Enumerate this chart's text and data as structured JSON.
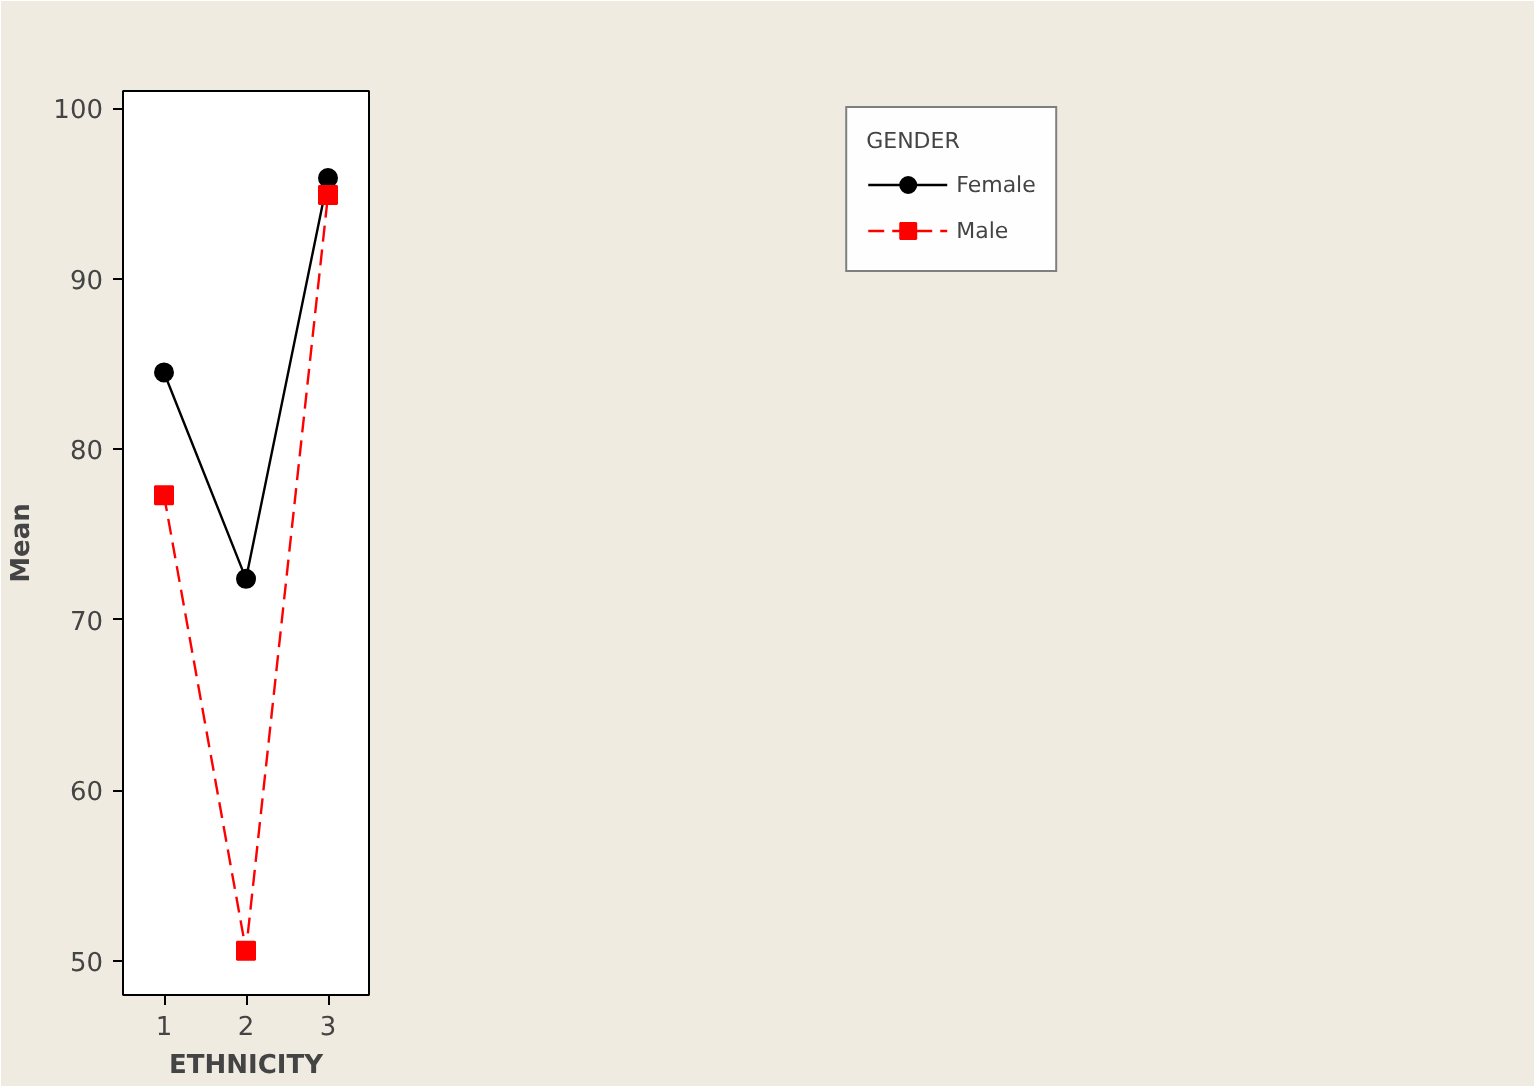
{
  "chart_data": {
    "type": "line",
    "xlabel": "ETHNICITY",
    "ylabel": "Mean",
    "legend_title": "GENDER",
    "legend": "top right",
    "categories": [
      "1",
      "2",
      "3"
    ],
    "ylim": [
      48,
      101
    ],
    "yticks": [
      50,
      60,
      70,
      80,
      90,
      100
    ],
    "grid": false,
    "series": [
      {
        "name": "Female",
        "color": "#000000",
        "marker": "circle",
        "line_style": "solid",
        "values": [
          84.5,
          72.4,
          95.9
        ]
      },
      {
        "name": "Male",
        "color": "#ff0000",
        "marker": "square",
        "line_style": "dashed",
        "values": [
          77.3,
          50.6,
          94.9
        ]
      }
    ]
  }
}
